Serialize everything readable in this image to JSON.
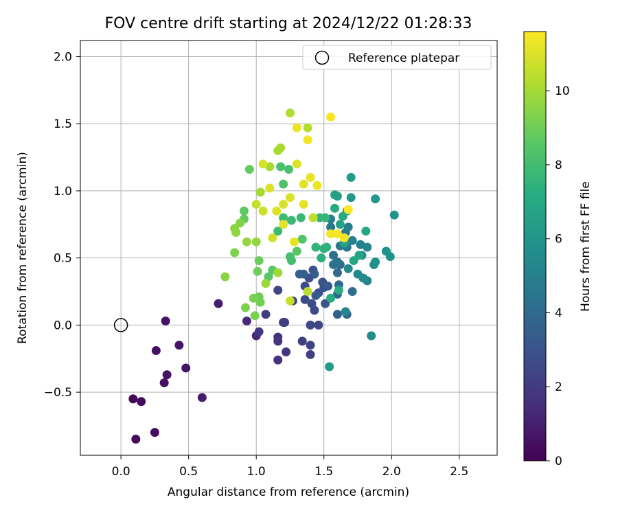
{
  "chart_data": {
    "type": "scatter",
    "title": "FOV centre drift starting at 2024/12/22 01:28:33",
    "xlabel": "Angular distance from reference (arcmin)",
    "ylabel": "Rotation from reference (arcmin)",
    "xlim": [
      -0.3,
      2.78
    ],
    "ylim": [
      -0.97,
      2.12
    ],
    "xticks": [
      0.0,
      0.5,
      1.0,
      1.5,
      2.0,
      2.5
    ],
    "xtick_labels": [
      "0.0",
      "0.5",
      "1.0",
      "1.5",
      "2.0",
      "2.5"
    ],
    "yticks": [
      -0.5,
      0.0,
      0.5,
      1.0,
      1.5,
      2.0
    ],
    "ytick_labels": [
      "−0.5",
      "0.0",
      "0.5",
      "1.0",
      "1.5",
      "2.0"
    ],
    "grid": true,
    "legend": {
      "position": "upper-right",
      "entries": [
        "Reference platepar"
      ]
    },
    "reference_point": {
      "x": 0.0,
      "y": 0.0,
      "label": "Reference platepar"
    },
    "colorbar": {
      "label": "Hours from first FF file",
      "colormap": "viridis",
      "range": [
        0,
        11.6
      ],
      "ticks": [
        0,
        2,
        4,
        6,
        8,
        10
      ],
      "tick_labels": [
        "0",
        "2",
        "4",
        "6",
        "8",
        "10"
      ]
    },
    "series": [
      {
        "points": [
          {
            "x": 0.09,
            "y": -0.55,
            "h": 0.2
          },
          {
            "x": 0.15,
            "y": -0.57,
            "h": 0.3
          },
          {
            "x": 0.11,
            "y": -0.85,
            "h": 0.3
          },
          {
            "x": 0.25,
            "y": -0.8,
            "h": 0.4
          },
          {
            "x": 0.26,
            "y": -0.19,
            "h": 0.5
          },
          {
            "x": 0.32,
            "y": -0.43,
            "h": 0.5
          },
          {
            "x": 0.34,
            "y": -0.37,
            "h": 0.6
          },
          {
            "x": 0.33,
            "y": 0.03,
            "h": 0.6
          },
          {
            "x": 0.43,
            "y": -0.15,
            "h": 0.7
          },
          {
            "x": 0.48,
            "y": -0.32,
            "h": 0.7
          },
          {
            "x": 0.6,
            "y": -0.54,
            "h": 0.9
          },
          {
            "x": 0.72,
            "y": 0.16,
            "h": 1.0
          },
          {
            "x": 1.0,
            "y": -0.08,
            "h": 1.4
          },
          {
            "x": 0.93,
            "y": 0.03,
            "h": 1.4
          },
          {
            "x": 1.16,
            "y": -0.26,
            "h": 1.6
          },
          {
            "x": 1.16,
            "y": -0.09,
            "h": 1.6
          },
          {
            "x": 1.16,
            "y": -0.12,
            "h": 1.7
          },
          {
            "x": 1.22,
            "y": -0.2,
            "h": 1.8
          },
          {
            "x": 1.02,
            "y": -0.05,
            "h": 1.8
          },
          {
            "x": 1.07,
            "y": 0.08,
            "h": 2.0
          },
          {
            "x": 1.2,
            "y": 0.02,
            "h": 2.0
          },
          {
            "x": 1.21,
            "y": 0.02,
            "h": 2.1
          },
          {
            "x": 1.34,
            "y": -0.12,
            "h": 2.1
          },
          {
            "x": 1.4,
            "y": -0.22,
            "h": 2.2
          },
          {
            "x": 1.4,
            "y": -0.15,
            "h": 2.3
          },
          {
            "x": 1.27,
            "y": 0.18,
            "h": 2.3
          },
          {
            "x": 1.16,
            "y": 0.26,
            "h": 2.4
          },
          {
            "x": 1.4,
            "y": 0.0,
            "h": 2.5
          },
          {
            "x": 1.46,
            "y": 0.0,
            "h": 2.5
          },
          {
            "x": 1.36,
            "y": 0.19,
            "h": 2.6
          },
          {
            "x": 1.43,
            "y": 0.11,
            "h": 2.6
          },
          {
            "x": 1.41,
            "y": 0.16,
            "h": 2.7
          },
          {
            "x": 1.36,
            "y": 0.29,
            "h": 2.7
          },
          {
            "x": 1.39,
            "y": 0.35,
            "h": 2.8
          },
          {
            "x": 1.42,
            "y": 0.41,
            "h": 2.9
          },
          {
            "x": 1.46,
            "y": 0.24,
            "h": 2.9
          },
          {
            "x": 1.49,
            "y": 0.32,
            "h": 3.0
          },
          {
            "x": 1.5,
            "y": 0.28,
            "h": 3.0
          },
          {
            "x": 1.51,
            "y": 0.16,
            "h": 3.1
          },
          {
            "x": 1.44,
            "y": 0.22,
            "h": 3.2
          },
          {
            "x": 1.53,
            "y": 0.29,
            "h": 3.3
          },
          {
            "x": 1.43,
            "y": 0.38,
            "h": 3.4
          },
          {
            "x": 1.35,
            "y": 0.38,
            "h": 3.5
          },
          {
            "x": 1.32,
            "y": 0.38,
            "h": 3.5
          },
          {
            "x": 1.6,
            "y": 0.08,
            "h": 3.6
          },
          {
            "x": 1.67,
            "y": 0.08,
            "h": 3.7
          },
          {
            "x": 1.6,
            "y": 0.23,
            "h": 3.8
          },
          {
            "x": 1.61,
            "y": 0.3,
            "h": 3.9
          },
          {
            "x": 1.6,
            "y": 0.39,
            "h": 4.0
          },
          {
            "x": 1.62,
            "y": 0.45,
            "h": 4.0
          },
          {
            "x": 1.71,
            "y": 0.25,
            "h": 4.2
          },
          {
            "x": 1.57,
            "y": 0.45,
            "h": 4.3
          },
          {
            "x": 1.57,
            "y": 0.52,
            "h": 4.3
          },
          {
            "x": 1.6,
            "y": 0.47,
            "h": 4.4
          },
          {
            "x": 1.62,
            "y": 0.59,
            "h": 4.5
          },
          {
            "x": 1.67,
            "y": 0.58,
            "h": 4.6
          },
          {
            "x": 1.66,
            "y": 0.69,
            "h": 4.6
          },
          {
            "x": 1.55,
            "y": 0.73,
            "h": 4.7
          },
          {
            "x": 1.55,
            "y": 0.79,
            "h": 4.8
          },
          {
            "x": 1.68,
            "y": 0.73,
            "h": 4.9
          },
          {
            "x": 1.71,
            "y": 0.63,
            "h": 5.0
          },
          {
            "x": 1.77,
            "y": 0.6,
            "h": 5.1
          },
          {
            "x": 1.82,
            "y": 0.33,
            "h": 5.1
          },
          {
            "x": 1.82,
            "y": 0.58,
            "h": 5.2
          },
          {
            "x": 1.66,
            "y": 0.1,
            "h": 5.3
          },
          {
            "x": 1.68,
            "y": 0.42,
            "h": 5.4
          },
          {
            "x": 1.75,
            "y": 0.38,
            "h": 5.4
          },
          {
            "x": 1.79,
            "y": 0.35,
            "h": 5.5
          },
          {
            "x": 1.85,
            "y": -0.08,
            "h": 5.6
          },
          {
            "x": 1.78,
            "y": 0.52,
            "h": 5.6
          },
          {
            "x": 1.87,
            "y": 0.45,
            "h": 5.7
          },
          {
            "x": 1.88,
            "y": 0.47,
            "h": 5.8
          },
          {
            "x": 1.96,
            "y": 0.55,
            "h": 5.8
          },
          {
            "x": 1.99,
            "y": 0.51,
            "h": 5.9
          },
          {
            "x": 2.02,
            "y": 0.82,
            "h": 6.0
          },
          {
            "x": 1.88,
            "y": 0.94,
            "h": 6.1
          },
          {
            "x": 1.7,
            "y": 0.95,
            "h": 6.2
          },
          {
            "x": 1.7,
            "y": 1.1,
            "h": 6.3
          },
          {
            "x": 1.54,
            "y": -0.31,
            "h": 6.3
          },
          {
            "x": 1.67,
            "y": 0.85,
            "h": 6.4
          },
          {
            "x": 1.6,
            "y": 0.96,
            "h": 6.5
          },
          {
            "x": 1.58,
            "y": 0.97,
            "h": 6.5
          },
          {
            "x": 1.62,
            "y": 0.75,
            "h": 6.6
          },
          {
            "x": 1.65,
            "y": 0.61,
            "h": 6.7
          },
          {
            "x": 1.72,
            "y": 0.48,
            "h": 6.8
          },
          {
            "x": 1.76,
            "y": 0.52,
            "h": 6.8
          },
          {
            "x": 1.81,
            "y": 0.7,
            "h": 6.9
          },
          {
            "x": 1.64,
            "y": 0.81,
            "h": 7.0
          },
          {
            "x": 1.58,
            "y": 0.87,
            "h": 7.0
          },
          {
            "x": 1.61,
            "y": 0.26,
            "h": 7.1
          },
          {
            "x": 1.55,
            "y": 0.2,
            "h": 7.2
          },
          {
            "x": 1.48,
            "y": 0.5,
            "h": 7.3
          },
          {
            "x": 1.5,
            "y": 0.57,
            "h": 7.4
          },
          {
            "x": 1.52,
            "y": 0.58,
            "h": 7.4
          },
          {
            "x": 1.44,
            "y": 0.58,
            "h": 7.5
          },
          {
            "x": 1.47,
            "y": 0.8,
            "h": 7.6
          },
          {
            "x": 1.51,
            "y": 0.8,
            "h": 7.6
          },
          {
            "x": 1.33,
            "y": 0.8,
            "h": 7.7
          },
          {
            "x": 1.26,
            "y": 0.78,
            "h": 7.8
          },
          {
            "x": 1.2,
            "y": 0.8,
            "h": 7.9
          },
          {
            "x": 1.16,
            "y": 0.7,
            "h": 7.9
          },
          {
            "x": 1.26,
            "y": 0.48,
            "h": 8.0
          },
          {
            "x": 1.25,
            "y": 0.51,
            "h": 8.1
          },
          {
            "x": 1.24,
            "y": 1.16,
            "h": 8.2
          },
          {
            "x": 1.18,
            "y": 1.18,
            "h": 8.2
          },
          {
            "x": 1.2,
            "y": 1.05,
            "h": 8.3
          },
          {
            "x": 1.34,
            "y": 0.64,
            "h": 8.4
          },
          {
            "x": 1.3,
            "y": 0.55,
            "h": 8.5
          },
          {
            "x": 1.09,
            "y": 0.36,
            "h": 8.5
          },
          {
            "x": 1.12,
            "y": 0.41,
            "h": 8.6
          },
          {
            "x": 0.91,
            "y": 0.85,
            "h": 8.7
          },
          {
            "x": 0.91,
            "y": 0.79,
            "h": 8.8
          },
          {
            "x": 0.95,
            "y": 1.16,
            "h": 8.8
          },
          {
            "x": 1.02,
            "y": 0.48,
            "h": 8.9
          },
          {
            "x": 1.01,
            "y": 0.4,
            "h": 9.0
          },
          {
            "x": 1.02,
            "y": 0.21,
            "h": 9.0
          },
          {
            "x": 1.03,
            "y": 0.17,
            "h": 9.1
          },
          {
            "x": 0.98,
            "y": 0.2,
            "h": 9.2
          },
          {
            "x": 0.99,
            "y": 0.07,
            "h": 9.2
          },
          {
            "x": 0.92,
            "y": 0.13,
            "h": 9.3
          },
          {
            "x": 0.84,
            "y": 0.54,
            "h": 9.3
          },
          {
            "x": 0.88,
            "y": 0.76,
            "h": 9.4
          },
          {
            "x": 0.84,
            "y": 0.72,
            "h": 9.5
          },
          {
            "x": 0.77,
            "y": 0.36,
            "h": 9.5
          },
          {
            "x": 0.85,
            "y": 0.69,
            "h": 9.6
          },
          {
            "x": 0.93,
            "y": 0.62,
            "h": 9.7
          },
          {
            "x": 1.0,
            "y": 0.62,
            "h": 9.7
          },
          {
            "x": 1.07,
            "y": 0.31,
            "h": 9.8
          },
          {
            "x": 1.16,
            "y": 0.39,
            "h": 9.9
          },
          {
            "x": 1.03,
            "y": 0.99,
            "h": 10.0
          },
          {
            "x": 1.1,
            "y": 1.18,
            "h": 10.0
          },
          {
            "x": 1.16,
            "y": 1.3,
            "h": 10.1
          },
          {
            "x": 1.18,
            "y": 1.32,
            "h": 10.1
          },
          {
            "x": 1.25,
            "y": 1.58,
            "h": 10.2
          },
          {
            "x": 1.38,
            "y": 1.47,
            "h": 10.3
          },
          {
            "x": 1.38,
            "y": 0.25,
            "h": 10.4
          },
          {
            "x": 1.42,
            "y": 0.8,
            "h": 10.5
          },
          {
            "x": 1.25,
            "y": 0.18,
            "h": 10.6
          },
          {
            "x": 1.0,
            "y": 0.9,
            "h": 10.6
          },
          {
            "x": 1.05,
            "y": 0.85,
            "h": 10.7
          },
          {
            "x": 1.12,
            "y": 0.65,
            "h": 10.8
          },
          {
            "x": 1.2,
            "y": 0.9,
            "h": 10.9
          },
          {
            "x": 1.25,
            "y": 0.95,
            "h": 11.0
          },
          {
            "x": 1.3,
            "y": 1.2,
            "h": 11.0
          },
          {
            "x": 1.35,
            "y": 1.05,
            "h": 11.1
          },
          {
            "x": 1.4,
            "y": 1.1,
            "h": 11.2
          },
          {
            "x": 1.3,
            "y": 1.47,
            "h": 11.3
          },
          {
            "x": 1.38,
            "y": 1.38,
            "h": 11.4
          },
          {
            "x": 1.55,
            "y": 1.55,
            "h": 11.5
          },
          {
            "x": 1.6,
            "y": 0.68,
            "h": 11.5
          },
          {
            "x": 1.68,
            "y": 0.86,
            "h": 11.6
          },
          {
            "x": 1.65,
            "y": 0.65,
            "h": 11.5
          },
          {
            "x": 1.55,
            "y": 0.68,
            "h": 11.4
          },
          {
            "x": 1.45,
            "y": 1.04,
            "h": 11.3
          },
          {
            "x": 1.35,
            "y": 0.9,
            "h": 11.2
          },
          {
            "x": 1.28,
            "y": 0.62,
            "h": 11.2
          },
          {
            "x": 1.2,
            "y": 0.75,
            "h": 11.1
          },
          {
            "x": 1.15,
            "y": 0.85,
            "h": 11.0
          },
          {
            "x": 1.1,
            "y": 1.02,
            "h": 11.0
          },
          {
            "x": 1.05,
            "y": 1.2,
            "h": 10.9
          }
        ]
      }
    ]
  }
}
